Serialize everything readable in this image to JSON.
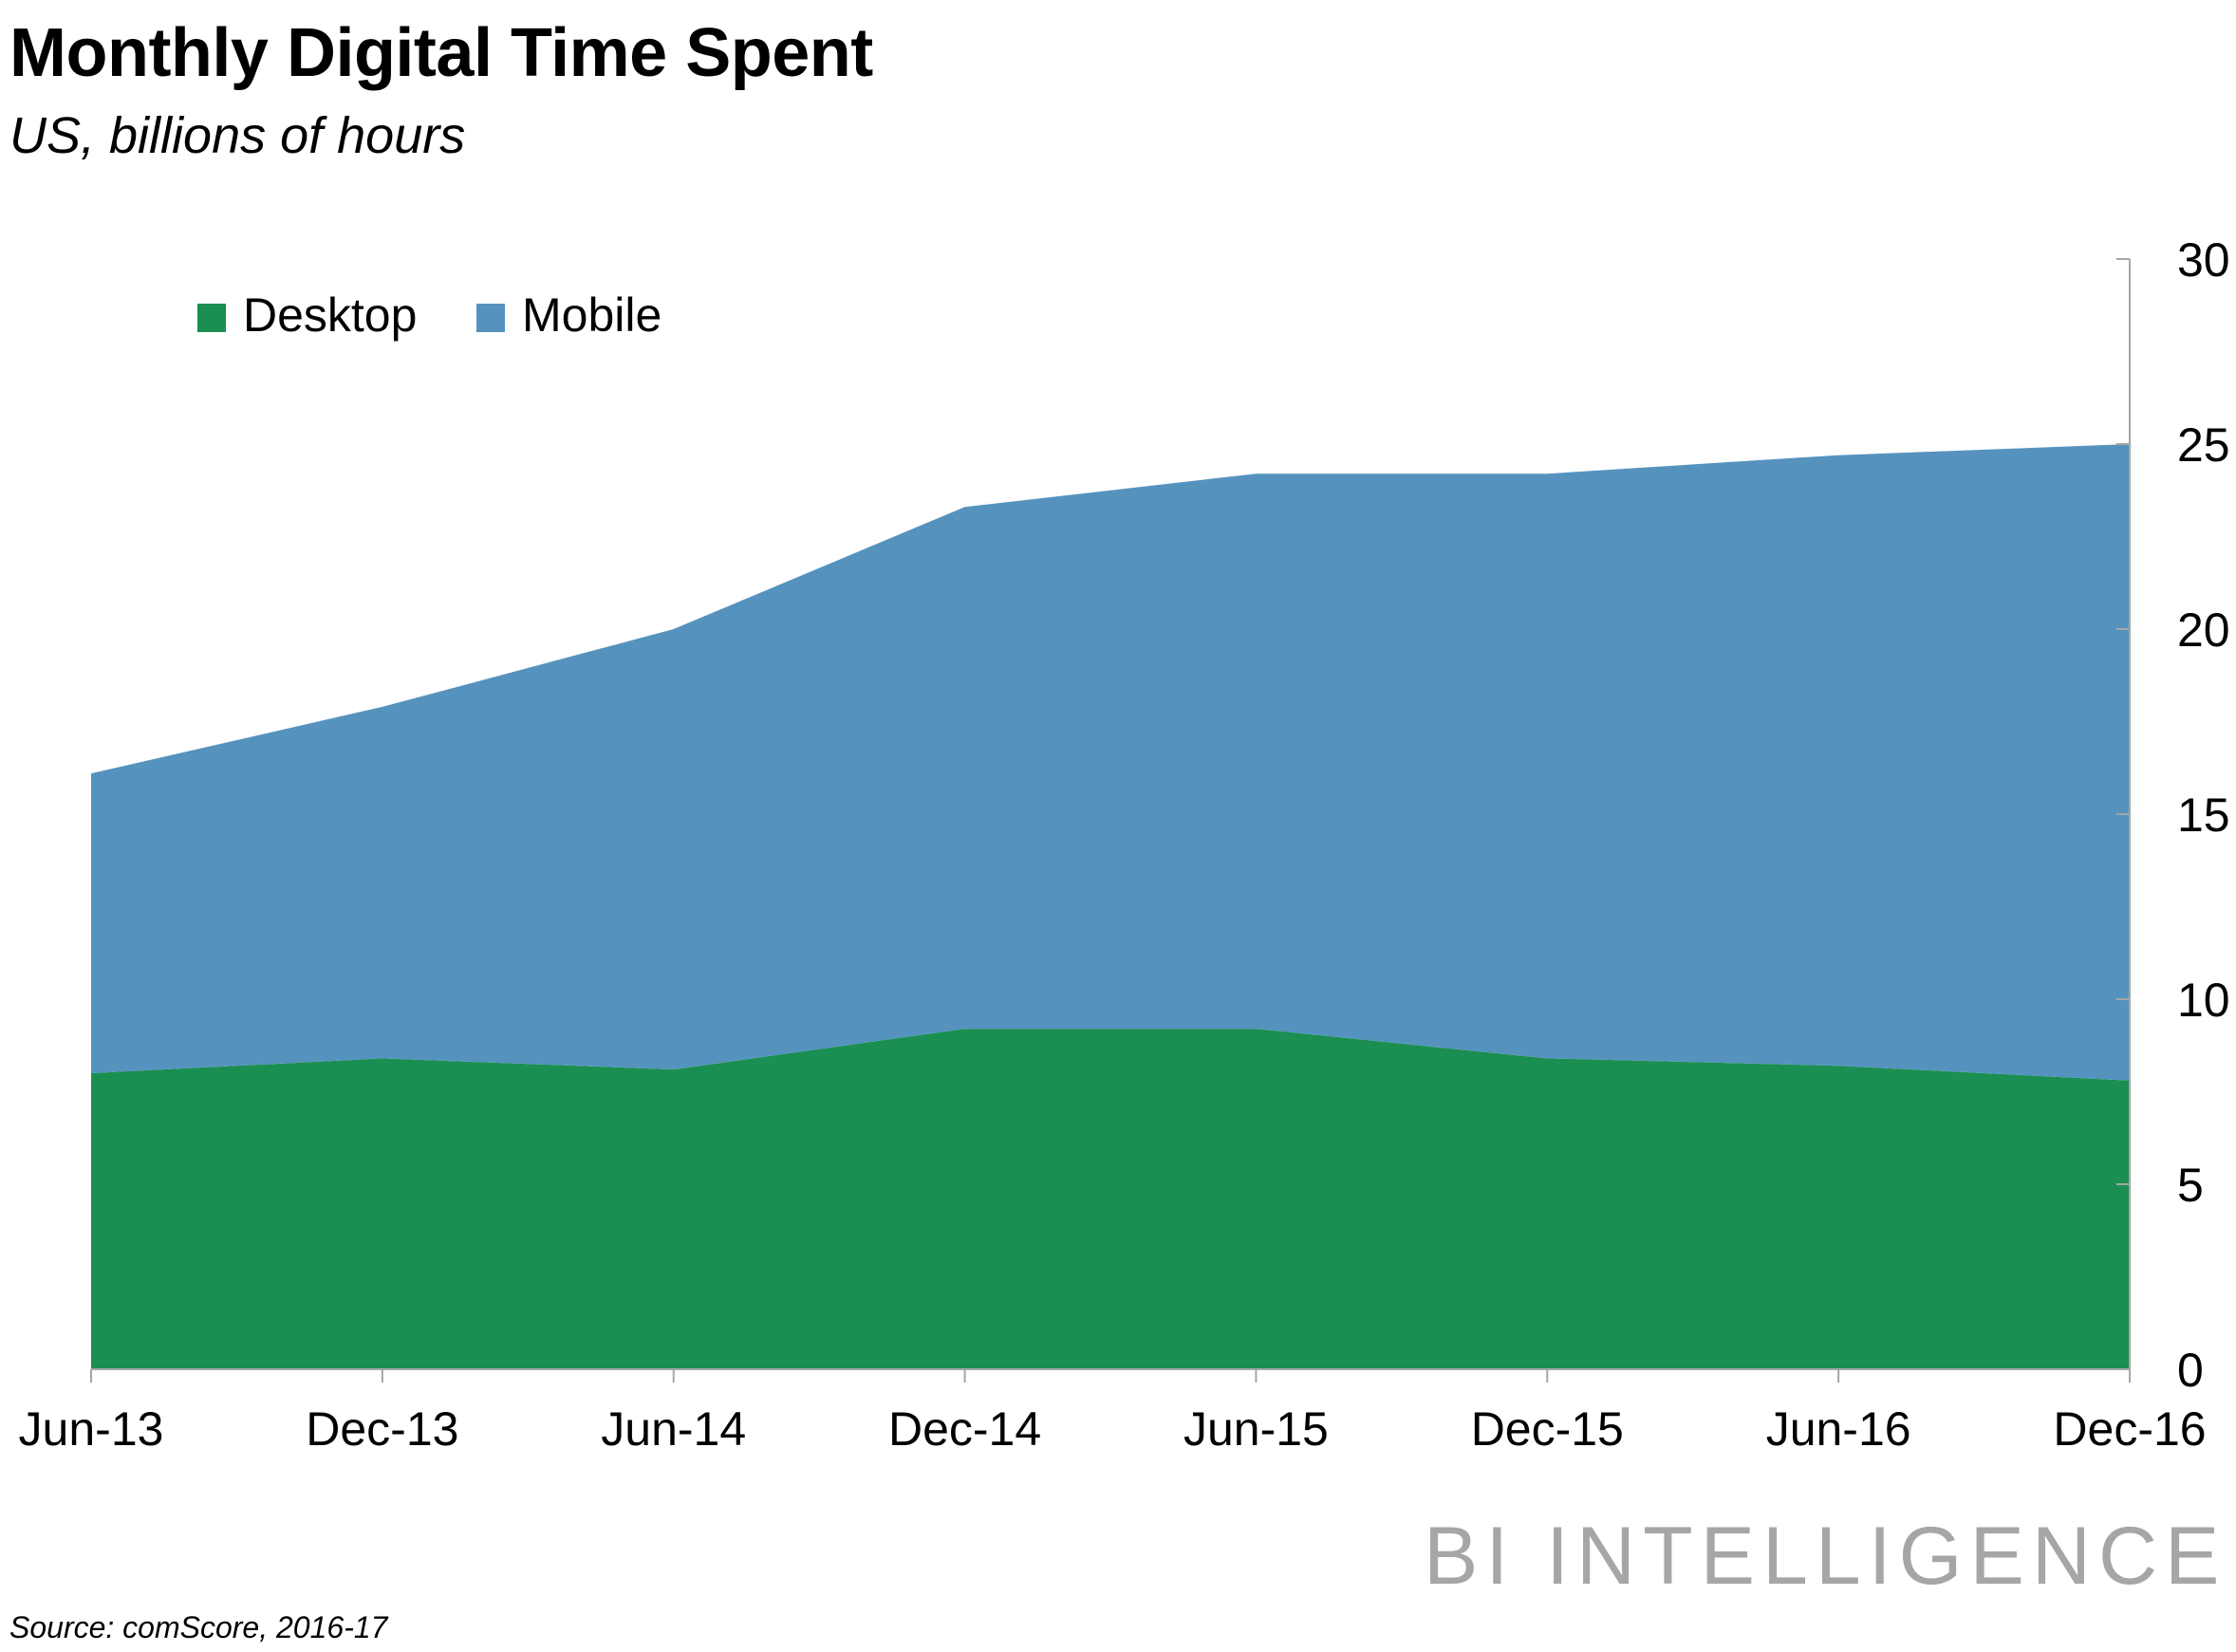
{
  "header": {
    "title": "Monthly Digital Time Spent",
    "subtitle": "US, billions of hours"
  },
  "footer": {
    "source": "Source: comScore, 2016-17",
    "logo_text": "BI INTELLIGENCE"
  },
  "chart_data": {
    "type": "area",
    "stacked": true,
    "title": "Monthly Digital Time Spent",
    "subtitle": "US, billions of hours",
    "xlabel": "",
    "ylabel": "",
    "categories": [
      "Jun-13",
      "Dec-13",
      "Jun-14",
      "Dec-14",
      "Jun-15",
      "Dec-15",
      "Jun-16",
      "Dec-16"
    ],
    "series": [
      {
        "name": "Desktop",
        "color": "#1a8f51",
        "values": [
          8.0,
          8.4,
          8.1,
          9.2,
          9.2,
          8.4,
          8.2,
          7.8
        ]
      },
      {
        "name": "Mobile",
        "color": "#5593be",
        "values": [
          8.1,
          9.5,
          11.9,
          14.1,
          15.0,
          15.8,
          16.5,
          17.2
        ]
      }
    ],
    "ylim": [
      0,
      30
    ],
    "yticks": [
      0,
      5,
      10,
      15,
      20,
      25,
      30
    ],
    "y_axis_position": "right",
    "grid": false,
    "legend": "top-left"
  }
}
